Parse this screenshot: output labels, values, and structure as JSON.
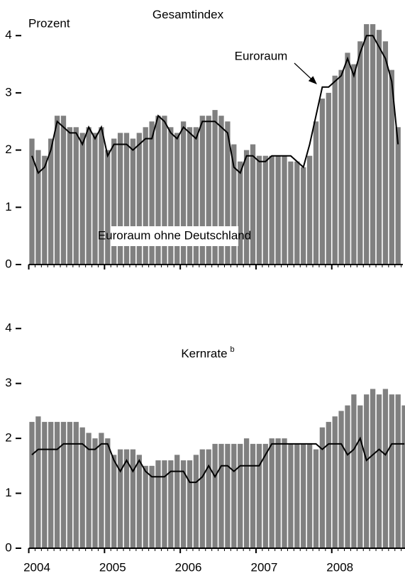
{
  "chart_data": [
    {
      "type": "bar_line",
      "title": "Gesamtindex",
      "y_label": "Prozent",
      "categories": [
        null,
        null,
        null,
        null,
        null,
        null,
        null,
        null,
        null,
        null,
        null,
        null,
        null,
        null,
        null,
        null,
        null,
        null,
        null,
        null,
        null,
        null,
        null,
        null,
        null,
        null,
        null,
        null,
        null,
        null,
        null,
        null,
        null,
        null,
        null,
        null,
        null,
        null,
        null,
        null,
        null,
        null,
        null,
        null,
        null,
        null,
        null,
        null,
        null,
        null,
        null,
        null,
        null,
        null,
        null,
        null,
        null,
        null,
        null
      ],
      "ylim": [
        0,
        4.3
      ],
      "yticks": [
        0,
        1,
        2,
        3,
        4
      ],
      "series": [
        {
          "name": "Euroraum ohne Deutschland",
          "color": "#808080",
          "values": [
            2.2,
            2.0,
            1.9,
            2.2,
            2.6,
            2.6,
            2.4,
            2.4,
            2.3,
            2.4,
            2.3,
            2.4,
            2.0,
            2.2,
            2.3,
            2.3,
            2.2,
            2.3,
            2.4,
            2.5,
            2.6,
            2.6,
            2.4,
            2.3,
            2.5,
            2.4,
            2.4,
            2.6,
            2.6,
            2.7,
            2.6,
            2.5,
            2.1,
            1.8,
            2.0,
            2.1,
            1.9,
            1.9,
            1.9,
            1.9,
            1.9,
            1.8,
            1.8,
            1.7,
            1.9,
            2.5,
            2.9,
            3.0,
            3.3,
            3.4,
            3.7,
            3.5,
            3.9,
            4.2,
            4.2,
            4.1,
            3.9,
            3.4,
            2.4
          ]
        },
        {
          "name": "Euroraum",
          "color": "#000000",
          "values": [
            1.9,
            1.6,
            1.7,
            2.0,
            2.5,
            2.4,
            2.3,
            2.3,
            2.1,
            2.4,
            2.2,
            2.4,
            1.9,
            2.1,
            2.1,
            2.1,
            2.0,
            2.1,
            2.2,
            2.2,
            2.6,
            2.5,
            2.3,
            2.2,
            2.4,
            2.3,
            2.2,
            2.5,
            2.5,
            2.5,
            2.4,
            2.3,
            1.7,
            1.6,
            1.9,
            1.9,
            1.8,
            1.8,
            1.9,
            1.9,
            1.9,
            1.9,
            1.8,
            1.7,
            2.1,
            2.6,
            3.1,
            3.1,
            3.2,
            3.3,
            3.6,
            3.3,
            3.7,
            4.0,
            4.0,
            3.8,
            3.6,
            3.2,
            2.1
          ]
        }
      ]
    },
    {
      "type": "bar_line",
      "title": "Kernrate",
      "title_superscript": "b",
      "categories": [
        "2004",
        null,
        null,
        null,
        null,
        null,
        null,
        null,
        null,
        null,
        null,
        null,
        "2005",
        null,
        null,
        null,
        null,
        null,
        null,
        null,
        null,
        null,
        null,
        null,
        "2006",
        null,
        null,
        null,
        null,
        null,
        null,
        null,
        null,
        null,
        null,
        null,
        "2007",
        null,
        null,
        null,
        null,
        null,
        null,
        null,
        null,
        null,
        null,
        null,
        "2008",
        null,
        null,
        null,
        null,
        null,
        null,
        null,
        null,
        null,
        null,
        null
      ],
      "ylim": [
        0,
        4.3
      ],
      "yticks": [
        0,
        1,
        2,
        3,
        4
      ],
      "series": [
        {
          "color": "#808080",
          "values": [
            2.3,
            2.4,
            2.3,
            2.3,
            2.3,
            2.3,
            2.3,
            2.3,
            2.2,
            2.1,
            2.0,
            2.1,
            2.0,
            1.7,
            1.8,
            1.8,
            1.8,
            1.7,
            1.5,
            1.5,
            1.6,
            1.6,
            1.6,
            1.7,
            1.6,
            1.6,
            1.7,
            1.8,
            1.8,
            1.9,
            1.9,
            1.9,
            1.9,
            1.9,
            2.0,
            1.9,
            1.9,
            1.9,
            2.0,
            2.0,
            2.0,
            1.9,
            1.9,
            1.9,
            1.9,
            1.8,
            2.2,
            2.3,
            2.4,
            2.5,
            2.6,
            2.8,
            2.6,
            2.8,
            2.9,
            2.8,
            2.9,
            2.8,
            2.8,
            2.6
          ]
        },
        {
          "color": "#000000",
          "values": [
            1.7,
            1.8,
            1.8,
            1.8,
            1.8,
            1.9,
            1.9,
            1.9,
            1.9,
            1.8,
            1.8,
            1.9,
            1.9,
            1.6,
            1.4,
            1.6,
            1.4,
            1.6,
            1.4,
            1.3,
            1.3,
            1.3,
            1.4,
            1.4,
            1.4,
            1.2,
            1.2,
            1.3,
            1.5,
            1.3,
            1.5,
            1.5,
            1.4,
            1.5,
            1.5,
            1.5,
            1.5,
            1.7,
            1.9,
            1.9,
            1.9,
            1.9,
            1.9,
            1.9,
            1.9,
            1.9,
            1.8,
            1.9,
            1.9,
            1.9,
            1.7,
            1.8,
            2.0,
            1.6,
            1.7,
            1.8,
            1.7,
            1.9,
            1.9,
            1.9
          ]
        }
      ]
    }
  ]
}
